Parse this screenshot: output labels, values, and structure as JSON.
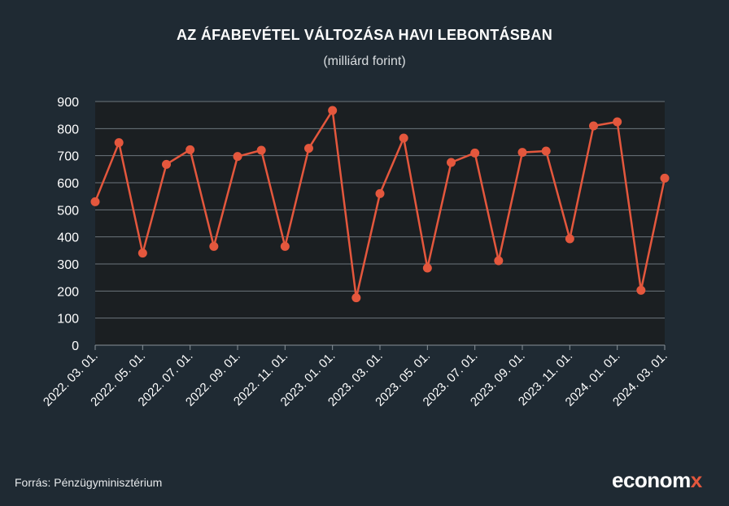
{
  "title": "AZ ÁFABEVÉTEL VÁLTOZÁSA HAVI LEBONTÁSBAN",
  "subtitle": "(milliárd forint)",
  "source": "Forrás: Pénzügyminisztérium",
  "logo": {
    "main": "econom",
    "accent": "x"
  },
  "colors": {
    "background": "#1f2a33",
    "plot_area": "#1b1f22",
    "line": "#e4573d",
    "grid": "#6c757c",
    "text": "#ffffff"
  },
  "chart_data": {
    "type": "line",
    "title": "AZ ÁFABEVÉTEL VÁLTOZÁSA HAVI LEBONTÁSBAN",
    "subtitle": "(milliárd forint)",
    "xlabel": "",
    "ylabel": "",
    "ylim": [
      0,
      900
    ],
    "yticks": [
      0,
      100,
      200,
      300,
      400,
      500,
      600,
      700,
      800,
      900
    ],
    "grid": true,
    "x_tick_labels": [
      "2022. 03. 01.",
      "2022. 05. 01.",
      "2022. 07. 01.",
      "2022. 09. 01.",
      "2022. 11. 01.",
      "2023. 01. 01.",
      "2023. 03. 01.",
      "2023. 05. 01.",
      "2023. 07. 01.",
      "2023. 09. 01.",
      "2023. 11. 01.",
      "2024. 01. 01.",
      "2024. 03. 01."
    ],
    "x": [
      "2022-03-01",
      "2022-04-01",
      "2022-05-01",
      "2022-06-01",
      "2022-07-01",
      "2022-08-01",
      "2022-09-01",
      "2022-10-01",
      "2022-11-01",
      "2022-12-01",
      "2023-01-01",
      "2023-02-01",
      "2023-03-01",
      "2023-04-01",
      "2023-05-01",
      "2023-06-01",
      "2023-07-01",
      "2023-08-01",
      "2023-09-01",
      "2023-10-01",
      "2023-11-01",
      "2023-12-01",
      "2024-01-01",
      "2024-02-01",
      "2024-03-01"
    ],
    "series": [
      {
        "values": [
          530,
          748,
          340,
          668,
          722,
          365,
          697,
          720,
          365,
          727,
          867,
          175,
          560,
          765,
          285,
          675,
          710,
          312,
          712,
          717,
          393,
          810,
          825,
          203,
          617
        ]
      }
    ]
  }
}
